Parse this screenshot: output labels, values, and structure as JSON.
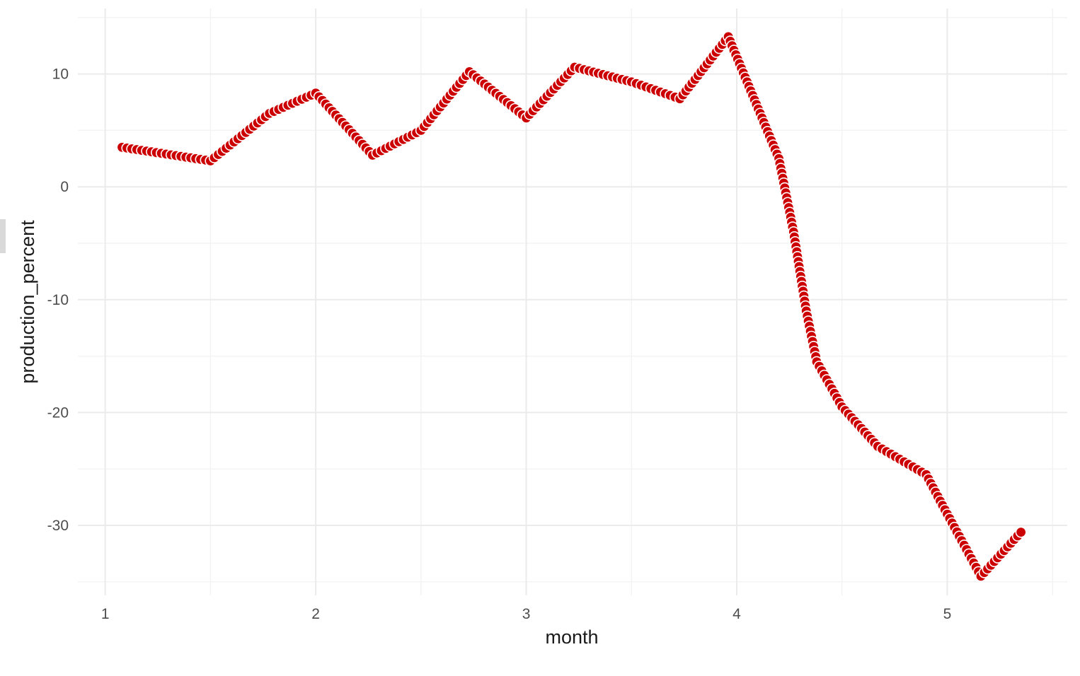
{
  "chart_data": {
    "type": "scatter",
    "title": "",
    "xlabel": "month",
    "ylabel": "production_percent",
    "xlim": [
      0.87,
      5.57
    ],
    "ylim": [
      -36.2,
      15.8
    ],
    "x_ticks": [
      1,
      2,
      3,
      4,
      5
    ],
    "y_ticks": [
      10,
      0,
      -10,
      -20,
      -30
    ],
    "x_tick_labels": [
      "1",
      "2",
      "3",
      "4",
      "5"
    ],
    "y_tick_labels": [
      "10",
      "0",
      "-10",
      "-20",
      "-30"
    ],
    "x_minor": [
      0.5,
      1.5,
      2.5,
      3.5,
      4.5,
      5.5
    ],
    "y_minor": [
      15,
      5,
      -5,
      -15,
      -25,
      -35
    ],
    "grid": true,
    "legend": "none",
    "point_color": "#cc0000",
    "series": [
      {
        "x": [
          1.08,
          1.5,
          1.78,
          2.0,
          2.27,
          2.5,
          2.73,
          3.0,
          3.23,
          3.5,
          3.73,
          3.96,
          4.2,
          4.27,
          4.33,
          4.38,
          4.5,
          4.67,
          4.9,
          5.0,
          5.16,
          5.35
        ],
        "y": [
          3.5,
          2.3,
          6.5,
          8.3,
          2.8,
          5.0,
          10.2,
          6.1,
          10.6,
          9.3,
          7.8,
          13.3,
          2.5,
          -4.0,
          -11.0,
          -15.5,
          -19.5,
          -23.0,
          -25.5,
          -29.0,
          -34.5,
          -30.6
        ]
      }
    ]
  }
}
